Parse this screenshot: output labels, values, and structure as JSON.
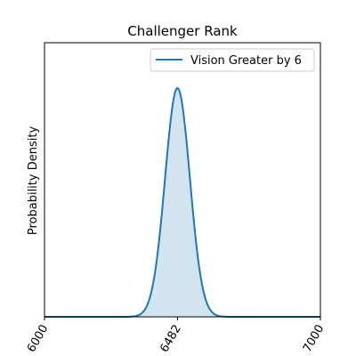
{
  "chart_data": {
    "type": "area",
    "title": "Challenger Rank",
    "xlabel": "",
    "ylabel": "Probability Density",
    "xlim": [
      6000,
      7000
    ],
    "x_ticks": [
      6000,
      6482,
      7000
    ],
    "x_tick_labels": [
      "6000",
      "6482",
      "7000"
    ],
    "y_ticks_shown": false,
    "grid": false,
    "legend_position": "top-right",
    "series": [
      {
        "name": "Vision Greater by 6",
        "distribution": "normal",
        "mean": 6482,
        "std": 45,
        "color": "#1f77b4",
        "fill_color": "#1f77b4",
        "fill_opacity": 0.2
      }
    ]
  }
}
